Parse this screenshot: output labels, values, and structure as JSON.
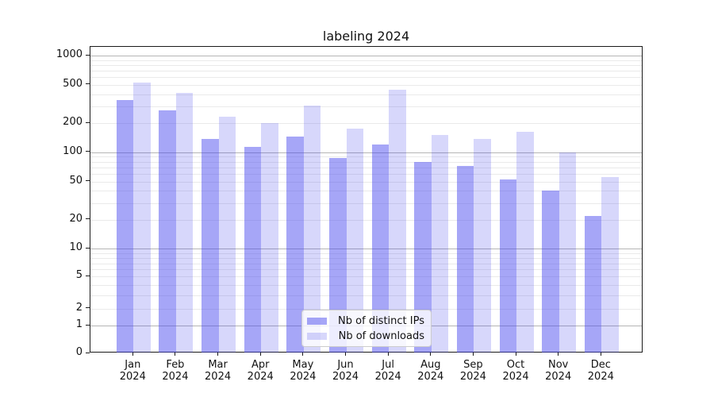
{
  "title": "labeling 2024",
  "colors": {
    "bar_distinct_ips": "rgba(68,68,238,0.48)",
    "bar_downloads": "rgba(68,68,238,0.21)",
    "grid_major": "#b5b5b5",
    "grid_minor": "#eaeaea",
    "axis_frame": "#1a1a1a"
  },
  "chart_data": {
    "type": "bar",
    "title": "labeling 2024",
    "categories": [
      "Jan",
      "Feb",
      "Mar",
      "Apr",
      "May",
      "Jun",
      "Jul",
      "Aug",
      "Sep",
      "Oct",
      "Nov",
      "Dec"
    ],
    "category_year": "2024",
    "series": [
      {
        "name": "Nb of distinct IPs",
        "values": [
          345,
          270,
          137,
          114,
          145,
          87,
          120,
          80,
          73,
          52,
          40,
          22
        ]
      },
      {
        "name": "Nb of downloads",
        "values": [
          530,
          415,
          232,
          201,
          306,
          176,
          442,
          152,
          137,
          163,
          100,
          56
        ]
      }
    ],
    "yscale": "symlog",
    "ytick_labels": [
      "0",
      "1",
      "2",
      "5",
      "10",
      "20",
      "50",
      "100",
      "200",
      "500",
      "1000"
    ],
    "yticks": [
      0,
      1,
      2,
      5,
      10,
      20,
      50,
      100,
      200,
      500,
      1000
    ],
    "ylim": [
      0,
      1200
    ],
    "xlabel": "",
    "ylabel": "",
    "grid": true,
    "legend_position": "lower center"
  },
  "legend": {
    "items": [
      {
        "label": "Nb of distinct IPs"
      },
      {
        "label": "Nb of downloads"
      }
    ]
  }
}
